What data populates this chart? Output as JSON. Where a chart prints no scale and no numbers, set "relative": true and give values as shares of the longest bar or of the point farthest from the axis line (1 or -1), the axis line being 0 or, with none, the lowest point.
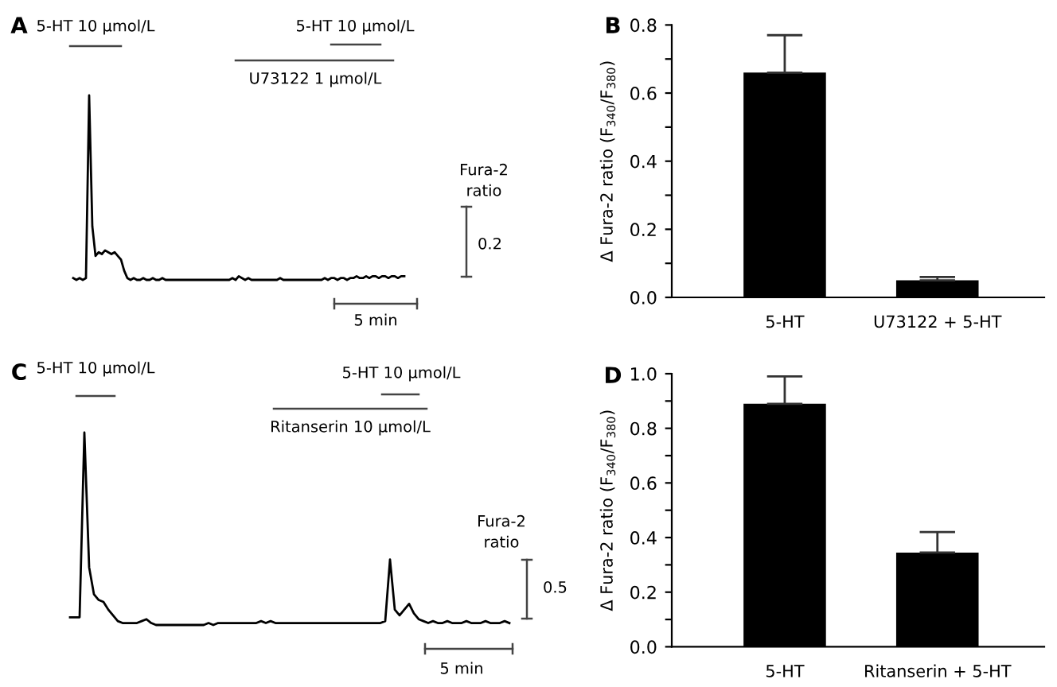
{
  "chart_data": [
    {
      "type": "line",
      "title": "A",
      "relative": true,
      "categories": [
        null,
        null,
        null,
        null,
        null,
        null,
        null,
        null,
        null,
        null,
        null,
        null,
        null,
        null,
        null,
        null,
        null,
        null,
        null,
        null,
        null,
        null,
        null,
        null,
        null,
        null,
        null,
        null,
        null,
        null,
        null,
        null,
        null,
        null,
        null,
        null,
        null,
        null,
        null,
        null,
        null,
        null,
        null,
        null,
        null,
        null,
        null,
        null,
        null,
        null,
        null,
        null,
        null,
        null,
        null,
        null,
        null,
        null,
        null,
        null,
        null,
        null,
        null,
        null,
        null,
        null,
        null,
        null,
        null,
        null,
        null,
        null,
        null,
        null,
        null,
        null,
        null,
        null,
        null,
        null,
        null,
        null,
        null,
        null,
        null,
        null,
        null,
        null,
        null,
        null,
        null,
        null,
        null,
        null,
        null,
        null,
        null,
        null,
        null,
        null,
        null,
        null,
        null,
        null,
        null
      ],
      "series": [
        {
          "color": "#000000",
          "values": [
            0.01,
            0,
            0.01,
            0,
            0.01,
            1.0,
            0.29,
            0.13,
            0.15,
            0.14,
            0.16,
            0.15,
            0.14,
            0.15,
            0.13,
            0.11,
            0.05,
            0.01,
            0,
            0.01,
            0,
            0,
            0.01,
            0,
            0,
            0.01,
            0,
            0,
            0.01,
            0,
            0,
            0,
            0,
            0,
            0,
            0,
            0,
            0,
            0,
            0,
            0,
            0,
            0,
            0,
            0,
            0,
            0,
            0,
            0,
            0,
            0.01,
            0,
            0.02,
            0.01,
            0,
            0.01,
            0,
            0,
            0,
            0,
            0,
            0,
            0,
            0,
            0,
            0.01,
            0,
            0,
            0,
            0,
            0,
            0,
            0,
            0,
            0,
            0,
            0,
            0,
            0,
            0.01,
            0,
            0.01,
            0.01,
            0,
            0.01,
            0.01,
            0,
            0.01,
            0.01,
            0.02,
            0.01,
            0.01,
            0.02,
            0.01,
            0.02,
            0.02,
            0.01,
            0.02,
            0.02,
            0.01,
            0.02,
            0.02,
            0.01,
            0.02,
            0.02
          ]
        }
      ],
      "annotations": [
        "5-HT 10 μmol/L",
        "5-HT 10 μmol/L",
        "U73122 1 μmol/L",
        "Fura-2\nratio",
        "0.2",
        "5 min"
      ]
    },
    {
      "type": "bar",
      "title": "B",
      "ylabel": "Δ Fura-2 ratio (F$_{340}$/F$_{380}$)",
      "categories": [
        "5-HT",
        "U73122 + 5-HT"
      ],
      "series": [
        {
          "color": "#000000",
          "values": [
            0.66,
            0.05
          ],
          "errors": [
            [
              0.66,
              0.77
            ],
            [
              0.05,
              0.06
            ]
          ]
        }
      ],
      "ylim": [
        0,
        0.8
      ],
      "yticks": [
        {
          "value": 0,
          "label": "0.0"
        },
        {
          "value": 0.1,
          "label": null
        },
        {
          "value": 0.2,
          "label": "0.2"
        },
        {
          "value": 0.3,
          "label": null
        },
        {
          "value": 0.4,
          "label": "0.4"
        },
        {
          "value": 0.5,
          "label": null
        },
        {
          "value": 0.6,
          "label": "0.6"
        },
        {
          "value": 0.7,
          "label": null
        },
        {
          "value": 0.8,
          "label": "0.8"
        }
      ]
    },
    {
      "type": "line",
      "title": "C",
      "relative": true,
      "categories": [
        null,
        null,
        null,
        null,
        null,
        null,
        null,
        null,
        null,
        null,
        null,
        null,
        null,
        null,
        null,
        null,
        null,
        null,
        null,
        null,
        null,
        null,
        null,
        null,
        null,
        null,
        null,
        null,
        null,
        null,
        null,
        null,
        null,
        null,
        null,
        null,
        null,
        null,
        null,
        null,
        null,
        null,
        null,
        null,
        null,
        null,
        null,
        null,
        null,
        null,
        null,
        null,
        null,
        null,
        null,
        null,
        null,
        null,
        null,
        null,
        null,
        null,
        null,
        null,
        null,
        null,
        null,
        null,
        null,
        null,
        null,
        null,
        null,
        null,
        null,
        null,
        null,
        null,
        null,
        null,
        null,
        null,
        null,
        null,
        null,
        null,
        null,
        null,
        null,
        null,
        null,
        null,
        null
      ],
      "series": [
        {
          "color": "#000000",
          "values": [
            0.04,
            0.04,
            0.04,
            1.0,
            0.3,
            0.16,
            0.13,
            0.12,
            0.08,
            0.05,
            0.02,
            0.01,
            0.01,
            0.01,
            0.01,
            0.02,
            0.03,
            0.01,
            0.0,
            0.0,
            0.0,
            0.0,
            0.0,
            0.0,
            0.0,
            0.0,
            0.0,
            0.0,
            0.0,
            0.01,
            0.0,
            0.01,
            0.01,
            0.01,
            0.01,
            0.01,
            0.01,
            0.01,
            0.01,
            0.01,
            0.02,
            0.01,
            0.02,
            0.01,
            0.01,
            0.01,
            0.01,
            0.01,
            0.01,
            0.01,
            0.01,
            0.01,
            0.01,
            0.01,
            0.01,
            0.01,
            0.01,
            0.01,
            0.01,
            0.01,
            0.01,
            0.01,
            0.01,
            0.01,
            0.01,
            0.01,
            0.02,
            0.34,
            0.08,
            0.05,
            0.08,
            0.11,
            0.06,
            0.03,
            0.02,
            0.01,
            0.02,
            0.01,
            0.01,
            0.02,
            0.01,
            0.01,
            0.01,
            0.02,
            0.01,
            0.01,
            0.01,
            0.02,
            0.01,
            0.01,
            0.01,
            0.02,
            0.01
          ]
        }
      ],
      "annotations": [
        "5-HT 10 μmol/L",
        "5-HT 10 μmol/L",
        "Ritanserin 10 μmol/L",
        "Fura-2\nratio",
        "0.5",
        "5 min"
      ]
    },
    {
      "type": "bar",
      "title": "D",
      "ylabel": "Δ Fura-2 ratio (F$_{340}$/F$_{380}$)",
      "categories": [
        "5-HT",
        "Ritanserin + 5-HT"
      ],
      "series": [
        {
          "color": "#000000",
          "values": [
            0.89,
            0.345
          ],
          "errors": [
            [
              0.89,
              0.99
            ],
            [
              0.345,
              0.42
            ]
          ]
        }
      ],
      "ylim": [
        0,
        1.0
      ],
      "yticks": [
        {
          "value": 0,
          "label": "0.0"
        },
        {
          "value": 0.1,
          "label": null
        },
        {
          "value": 0.2,
          "label": "0.2"
        },
        {
          "value": 0.3,
          "label": null
        },
        {
          "value": 0.4,
          "label": "0.4"
        },
        {
          "value": 0.5,
          "label": null
        },
        {
          "value": 0.6,
          "label": "0.6"
        },
        {
          "value": 0.7,
          "label": null
        },
        {
          "value": 0.8,
          "label": "0.8"
        },
        {
          "value": 0.9,
          "label": null
        },
        {
          "value": 1.0,
          "label": "1.0"
        }
      ]
    }
  ]
}
